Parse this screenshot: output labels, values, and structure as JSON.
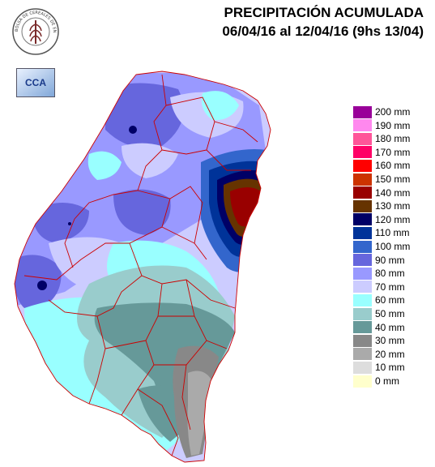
{
  "title": {
    "line1": "PRECIPITACIÓN ACUMULADA",
    "line2": "06/04/16 al 12/04/16 (9hs 13/04)"
  },
  "logos": {
    "seal_text": "BOLSA DE CEREALES DE ENTRE RIOS",
    "cca_text": "CCA"
  },
  "legend": [
    {
      "label": "200 mm",
      "color": "#990099"
    },
    {
      "label": "190 mm",
      "color": "#ff88ee"
    },
    {
      "label": "180 mm",
      "color": "#ff5599"
    },
    {
      "label": "170 mm",
      "color": "#ff0066"
    },
    {
      "label": "160 mm",
      "color": "#ff0000"
    },
    {
      "label": "150 mm",
      "color": "#cc3300"
    },
    {
      "label": "140 mm",
      "color": "#990000"
    },
    {
      "label": "130 mm",
      "color": "#663300"
    },
    {
      "label": "120 mm",
      "color": "#000066"
    },
    {
      "label": "110 mm",
      "color": "#003399"
    },
    {
      "label": "100 mm",
      "color": "#3366cc"
    },
    {
      "label": "90 mm",
      "color": "#6666dd"
    },
    {
      "label": "80 mm",
      "color": "#9999ff"
    },
    {
      "label": "70 mm",
      "color": "#ccccff"
    },
    {
      "label": "60 mm",
      "color": "#99ffff"
    },
    {
      "label": "50 mm",
      "color": "#99cccc"
    },
    {
      "label": "40 mm",
      "color": "#669999"
    },
    {
      "label": "30 mm",
      "color": "#888888"
    },
    {
      "label": "20 mm",
      "color": "#aaaaaa"
    },
    {
      "label": "10 mm",
      "color": "#dddddd"
    },
    {
      "label": "0 mm",
      "color": "#ffffcc"
    }
  ]
}
